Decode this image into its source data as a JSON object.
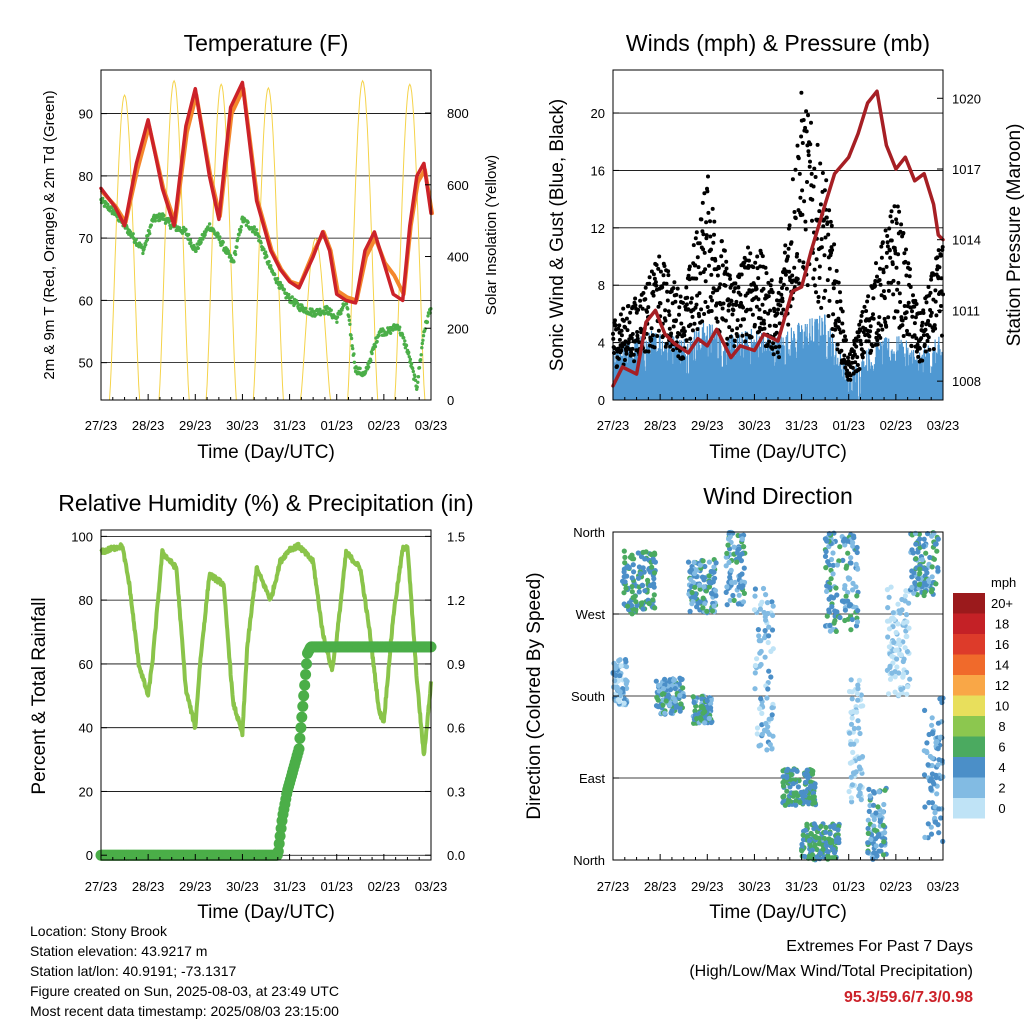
{
  "info": {
    "location": "Location: Stony Brook",
    "elevation": "Station elevation: 43.9217 m",
    "latlon": "Station lat/lon: 40.9191; -73.1317",
    "created": "Figure created on Sun, 2025-08-03, at 23:49 UTC",
    "recent": "Most recent data timestamp: 2025/08/03 23:15:00"
  },
  "extremes": {
    "title": "Extremes For Past 7 Days",
    "subtitle": "(High/Low/Max Wind/Total Precipitation)",
    "values": "95.3/59.6/7.3/0.98",
    "value_color": "#cc2229"
  },
  "colors": {
    "t2m": "#cc2229",
    "t9m": "#f4872c",
    "dewpoint": "#4bae48",
    "solar": "#f5d34a",
    "wind": "#4f98d2",
    "gust": "#000000",
    "pressure": "#a61f24",
    "rh": "#8ac44a",
    "precip": "#4bae48"
  },
  "chart_data": [
    {
      "type": "line",
      "title": "Temperature (F)",
      "xlabel": "Time (Day/UTC)",
      "ylabel": "2m & 9m T (Red, Orange) & 2m Td (Green)",
      "y2label": "Solar Insolation (Yellow)",
      "x_ticks": [
        "27/23",
        "28/23",
        "29/23",
        "30/23",
        "31/23",
        "01/23",
        "02/23",
        "03/23"
      ],
      "xlim": [
        0,
        7
      ],
      "ylim": [
        44,
        97
      ],
      "y_ticks": [
        50,
        60,
        70,
        80,
        90
      ],
      "y2lim": [
        0,
        920
      ],
      "y2_ticks": [
        0,
        200,
        400,
        600,
        800
      ],
      "series": [
        {
          "name": "2m T",
          "x": [
            0,
            0.3,
            0.5,
            0.75,
            1.0,
            1.3,
            1.55,
            1.8,
            2.0,
            2.3,
            2.5,
            2.75,
            3.0,
            3.3,
            3.6,
            3.8,
            4.0,
            4.2,
            4.5,
            4.7,
            4.85,
            5.0,
            5.2,
            5.4,
            5.6,
            5.8,
            6.0,
            6.2,
            6.4,
            6.55,
            6.7,
            6.85,
            7.0
          ],
          "values": [
            78,
            75,
            72,
            82,
            89,
            78,
            72,
            88,
            94,
            80,
            73,
            91,
            95,
            76,
            68,
            65,
            63,
            62,
            67,
            71,
            68,
            61,
            60,
            59.6,
            68,
            71,
            66,
            61,
            60,
            72,
            80,
            82,
            74
          ]
        },
        {
          "name": "9m T",
          "x": [
            0,
            0.3,
            0.5,
            0.75,
            1.0,
            1.3,
            1.55,
            1.8,
            2.0,
            2.3,
            2.5,
            2.75,
            3.0,
            3.3,
            3.6,
            3.8,
            4.0,
            4.2,
            4.5,
            4.7,
            4.85,
            5.0,
            5.2,
            5.4,
            5.6,
            5.8,
            6.0,
            6.2,
            6.4,
            6.55,
            6.7,
            6.85,
            7.0
          ],
          "values": [
            77.5,
            75,
            72.5,
            81,
            88,
            78,
            72.5,
            87,
            93,
            80,
            73.5,
            90,
            94,
            76,
            68,
            65,
            63,
            62.5,
            68,
            71,
            68,
            61.5,
            60.5,
            60,
            67,
            70,
            66,
            64,
            61,
            72,
            79,
            81,
            74
          ]
        },
        {
          "name": "2m Td",
          "x": [
            0,
            0.3,
            0.6,
            0.9,
            1.1,
            1.3,
            1.5,
            1.8,
            2.0,
            2.3,
            2.5,
            2.8,
            3.0,
            3.3,
            3.6,
            3.9,
            4.2,
            4.5,
            4.8,
            5.0,
            5.2,
            5.4,
            5.6,
            5.9,
            6.1,
            6.3,
            6.5,
            6.7,
            6.85,
            7.0
          ],
          "values": [
            76,
            74,
            71,
            68,
            73,
            73.5,
            72,
            71,
            68,
            72,
            70,
            66,
            73,
            71,
            65,
            61,
            59,
            58,
            58.5,
            57,
            60,
            49,
            48,
            55,
            55,
            56,
            52,
            46,
            55,
            59
          ]
        },
        {
          "name": "Solar Insolation",
          "axis": "y2",
          "peaks": [
            0.5,
            1.55,
            2.55,
            3.55,
            4.55,
            5.55,
            6.55
          ],
          "peak_values": [
            850,
            890,
            880,
            870,
            450,
            890,
            880
          ]
        }
      ]
    },
    {
      "type": "line",
      "title": "Winds (mph) & Pressure (mb)",
      "xlabel": "Time (Day/UTC)",
      "ylabel": "Sonic Wind & Gust (Blue, Black)",
      "y2label": "Station Pressure (Maroon)",
      "x_ticks": [
        "27/23",
        "28/23",
        "29/23",
        "30/23",
        "31/23",
        "01/23",
        "02/23",
        "03/23"
      ],
      "xlim": [
        0,
        7
      ],
      "ylim": [
        0,
        23
      ],
      "y_ticks": [
        0,
        4,
        8,
        12,
        16,
        20
      ],
      "y2lim": [
        1007.2,
        1021.2
      ],
      "y2_ticks": [
        1008,
        1011,
        1014,
        1017,
        1020
      ],
      "series": [
        {
          "name": "Gust (Black)",
          "x": [
            0,
            0.5,
            1.0,
            1.5,
            2.0,
            2.5,
            3.0,
            3.5,
            4.0,
            4.5,
            5.0,
            5.5,
            6.0,
            6.5,
            7.0
          ],
          "values": [
            4,
            5,
            7,
            5,
            11,
            6,
            8,
            5,
            15,
            11,
            2,
            6,
            10,
            4,
            8
          ]
        },
        {
          "name": "Wind (Blue)",
          "x": [
            0,
            0.5,
            1.0,
            1.5,
            2.0,
            2.5,
            3.0,
            3.5,
            4.0,
            4.5,
            5.0,
            5.5,
            6.0,
            6.5,
            7.0
          ],
          "values": [
            2,
            3,
            3.5,
            3,
            4,
            3,
            3.5,
            3,
            4,
            4.5,
            0.5,
            2.5,
            3,
            2,
            3
          ]
        },
        {
          "name": "Pressure (Maroon)",
          "axis": "y2",
          "x": [
            0,
            0.2,
            0.5,
            0.7,
            0.9,
            1.1,
            1.3,
            1.6,
            1.8,
            2.0,
            2.2,
            2.5,
            2.7,
            3.0,
            3.2,
            3.5,
            3.8,
            4.0,
            4.2,
            4.5,
            4.7,
            5.0,
            5.2,
            5.4,
            5.6,
            5.8,
            6.0,
            6.2,
            6.4,
            6.6,
            6.8,
            6.9,
            7.0
          ],
          "values": [
            1007.8,
            1008.6,
            1008.3,
            1010.5,
            1011.0,
            1010.0,
            1009.6,
            1009.2,
            1009.8,
            1009.5,
            1010.2,
            1009.0,
            1009.5,
            1009.3,
            1010.0,
            1009.7,
            1011.8,
            1012.0,
            1013.5,
            1015.5,
            1016.8,
            1017.5,
            1018.5,
            1019.8,
            1020.3,
            1018.0,
            1017.0,
            1017.5,
            1016.5,
            1016.8,
            1015.5,
            1014.2,
            1014.0
          ]
        }
      ]
    },
    {
      "type": "line",
      "title": "Relative Humidity (%) & Precipitation (in)",
      "xlabel": "Time (Day/UTC)",
      "ylabel": "Percent & Total Rainfall",
      "x_ticks": [
        "27/23",
        "28/23",
        "29/23",
        "30/23",
        "31/23",
        "01/23",
        "02/23",
        "03/23"
      ],
      "xlim": [
        0,
        7
      ],
      "ylim": [
        -1.5,
        102
      ],
      "y_ticks": [
        0,
        20,
        40,
        60,
        80,
        100
      ],
      "y2lim": [
        -0.0225,
        1.53
      ],
      "y2_ticks": [
        "0.0",
        "0.3",
        "0.6",
        "0.9",
        "1.2",
        "1.5"
      ],
      "series": [
        {
          "name": "Relative Humidity",
          "x": [
            0,
            0.2,
            0.45,
            0.6,
            0.8,
            1.0,
            1.1,
            1.3,
            1.6,
            1.8,
            2.0,
            2.1,
            2.3,
            2.6,
            2.8,
            3.0,
            3.1,
            3.3,
            3.6,
            3.8,
            4.0,
            4.2,
            4.5,
            4.7,
            4.9,
            5.0,
            5.2,
            5.5,
            5.7,
            5.9,
            6.0,
            6.2,
            6.4,
            6.5,
            6.7,
            6.85,
            7.0
          ],
          "values": [
            95,
            96,
            97,
            85,
            60,
            50,
            62,
            95,
            90,
            52,
            40,
            60,
            88,
            85,
            48,
            38,
            65,
            90,
            80,
            92,
            96,
            97,
            92,
            70,
            58,
            68,
            95,
            90,
            70,
            45,
            42,
            75,
            96,
            97,
            55,
            31,
            54
          ]
        },
        {
          "name": "Total Precipitation",
          "axis": "y2",
          "x": [
            0,
            3.75,
            3.85,
            3.95,
            4.05,
            4.2,
            4.3,
            4.38,
            4.45,
            4.6,
            5.0,
            6.0,
            7.0
          ],
          "values": [
            0,
            0,
            0.18,
            0.3,
            0.38,
            0.5,
            0.75,
            0.95,
            0.98,
            0.98,
            0.98,
            0.98,
            0.98
          ]
        }
      ]
    },
    {
      "type": "scatter",
      "title": "Wind Direction",
      "xlabel": "Time (Day/UTC)",
      "ylabel": "Direction (Colored By Speed)",
      "x_ticks": [
        "27/23",
        "28/23",
        "29/23",
        "30/23",
        "31/23",
        "01/23",
        "02/23",
        "03/23"
      ],
      "xlim": [
        0,
        7
      ],
      "ylim": [
        0,
        360
      ],
      "y_ticks": [
        "North",
        "East",
        "South",
        "West",
        "North"
      ],
      "colorbar": {
        "unit": "mph",
        "labels": [
          "20+",
          "18",
          "16",
          "14",
          "12",
          "10",
          "8",
          "6",
          "4",
          "2",
          "0"
        ],
        "colors": [
          "#9b1a1c",
          "#c42126",
          "#dd3b2a",
          "#f06a2b",
          "#f9a747",
          "#e8df5c",
          "#8cc74f",
          "#4baa60",
          "#4b8fc8",
          "#82bbe3",
          "#bfe3f6"
        ]
      },
      "clusters": [
        {
          "x": [
            0.2,
            0.9
          ],
          "dir": [
            270,
            340
          ],
          "speed": 5
        },
        {
          "x": [
            1.6,
            2.2
          ],
          "dir": [
            270,
            330
          ],
          "speed": 4
        },
        {
          "x": [
            2.4,
            2.8
          ],
          "dir": [
            280,
            360
          ],
          "speed": 4
        },
        {
          "x": [
            0.0,
            0.3
          ],
          "dir": [
            170,
            220
          ],
          "speed": 2
        },
        {
          "x": [
            0.9,
            1.5
          ],
          "dir": [
            160,
            200
          ],
          "speed": 4
        },
        {
          "x": [
            1.7,
            2.1
          ],
          "dir": [
            150,
            180
          ],
          "speed": 4
        },
        {
          "x": [
            3.0,
            3.4
          ],
          "dir": [
            120,
            300
          ],
          "speed": 2
        },
        {
          "x": [
            3.6,
            4.3
          ],
          "dir": [
            60,
            100
          ],
          "speed": 5
        },
        {
          "x": [
            4.0,
            4.8
          ],
          "dir": [
            0,
            40
          ],
          "speed": 5
        },
        {
          "x": [
            4.5,
            5.2
          ],
          "dir": [
            250,
            360
          ],
          "speed": 4
        },
        {
          "x": [
            5.0,
            5.3
          ],
          "dir": [
            60,
            200
          ],
          "speed": 1
        },
        {
          "x": [
            5.4,
            5.8
          ],
          "dir": [
            0,
            80
          ],
          "speed": 4
        },
        {
          "x": [
            5.8,
            6.3
          ],
          "dir": [
            180,
            300
          ],
          "speed": 1
        },
        {
          "x": [
            6.3,
            6.9
          ],
          "dir": [
            290,
            360
          ],
          "speed": 4
        },
        {
          "x": [
            6.6,
            7.0
          ],
          "dir": [
            20,
            180
          ],
          "speed": 3
        }
      ]
    }
  ]
}
